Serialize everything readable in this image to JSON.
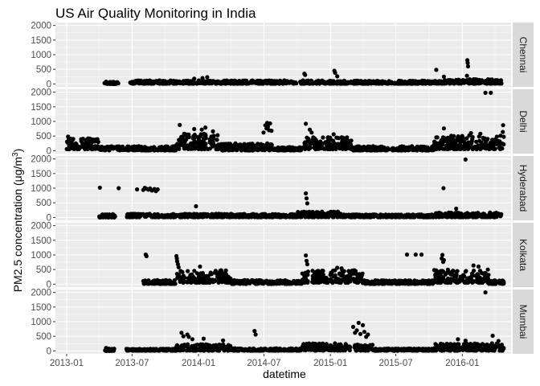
{
  "chart_data": {
    "type": "scatter",
    "title": "US Air Quality Monitoring in India",
    "xlabel": "datetime",
    "ylabel": "PM2.5 concentration (μg/m³)",
    "ylabel_parts": {
      "main": "PM2.5 concentration (μg/m",
      "sup": "3",
      "tail": ")"
    },
    "x_ticks": [
      "2013-01",
      "2013-07",
      "2014-01",
      "2014-07",
      "2015-01",
      "2015-07",
      "2016-01"
    ],
    "xlim": [
      "2012-12-01",
      "2016-05-15"
    ],
    "y_ticks": [
      0,
      500,
      1000,
      1500,
      2000
    ],
    "ylim": [
      -100,
      2100
    ],
    "facet_direction": "rows",
    "strip_position": "right",
    "colors": {
      "panel_bg": "#ebebeb",
      "grid_major": "#ffffff",
      "grid_minor": "#f7f7f7",
      "strip_bg": "#d9d9d9",
      "point": "#000000"
    },
    "panels": [
      {
        "name": "Chennai",
        "baseline": [
          {
            "from": "2013-04-15",
            "to": "2013-05-25",
            "low": 0,
            "high": 70
          },
          {
            "from": "2013-06-25",
            "to": "2014-12-15",
            "low": 10,
            "high": 120
          },
          {
            "from": "2014-12-15",
            "to": "2015-11-10",
            "low": 10,
            "high": 110
          },
          {
            "from": "2015-11-10",
            "to": "2016-04-20",
            "low": 10,
            "high": 160
          }
        ],
        "outliers": [
          {
            "x": "2013-04-20",
            "y": 75
          },
          {
            "x": "2013-05-01",
            "y": 60
          },
          {
            "x": "2013-05-20",
            "y": 50
          },
          {
            "x": "2013-07-01",
            "y": 70
          },
          {
            "x": "2013-07-25",
            "y": 110
          },
          {
            "x": "2013-09-15",
            "y": 120
          },
          {
            "x": "2013-12-20",
            "y": 180
          },
          {
            "x": "2014-01-12",
            "y": 200
          },
          {
            "x": "2014-01-25",
            "y": 230
          },
          {
            "x": "2014-10-21",
            "y": 350
          },
          {
            "x": "2014-10-23",
            "y": 310
          },
          {
            "x": "2015-01-12",
            "y": 450
          },
          {
            "x": "2015-01-14",
            "y": 380
          },
          {
            "x": "2015-01-20",
            "y": 260
          },
          {
            "x": "2015-10-21",
            "y": 480
          },
          {
            "x": "2015-11-11",
            "y": 250
          },
          {
            "x": "2016-01-15",
            "y": 810
          },
          {
            "x": "2016-01-16",
            "y": 720
          },
          {
            "x": "2016-01-17",
            "y": 600
          },
          {
            "x": "2016-01-14",
            "y": 280
          },
          {
            "x": "2016-04-10",
            "y": 100
          }
        ]
      },
      {
        "name": "Delhi",
        "baseline": [
          {
            "from": "2013-01-01",
            "to": "2013-03-31",
            "low": 50,
            "high": 420
          },
          {
            "from": "2013-03-31",
            "to": "2013-10-31",
            "low": 10,
            "high": 150
          },
          {
            "from": "2013-10-31",
            "to": "2014-02-28",
            "low": 50,
            "high": 580
          },
          {
            "from": "2014-02-28",
            "to": "2014-07-31",
            "low": 10,
            "high": 250
          },
          {
            "from": "2014-07-31",
            "to": "2014-10-15",
            "low": 10,
            "high": 120
          },
          {
            "from": "2014-10-15",
            "to": "2015-02-28",
            "low": 50,
            "high": 460
          },
          {
            "from": "2015-02-28",
            "to": "2015-10-15",
            "low": 10,
            "high": 150
          },
          {
            "from": "2015-10-15",
            "to": "2016-04-25",
            "low": 50,
            "high": 520
          }
        ],
        "outliers": [
          {
            "x": "2013-01-05",
            "y": 480
          },
          {
            "x": "2013-11-10",
            "y": 880
          },
          {
            "x": "2013-12-20",
            "y": 740
          },
          {
            "x": "2014-01-10",
            "y": 720
          },
          {
            "x": "2014-01-20",
            "y": 790
          },
          {
            "x": "2014-02-10",
            "y": 660
          },
          {
            "x": "2014-06-30",
            "y": 620
          },
          {
            "x": "2014-07-05",
            "y": 870
          },
          {
            "x": "2014-07-08",
            "y": 760
          },
          {
            "x": "2014-07-10",
            "y": 950
          },
          {
            "x": "2014-07-12",
            "y": 820
          },
          {
            "x": "2014-07-15",
            "y": 700
          },
          {
            "x": "2014-07-18",
            "y": 930
          },
          {
            "x": "2014-07-22",
            "y": 680
          },
          {
            "x": "2014-10-25",
            "y": 920
          },
          {
            "x": "2014-11-05",
            "y": 720
          },
          {
            "x": "2014-11-10",
            "y": 620
          },
          {
            "x": "2015-01-10",
            "y": 560
          },
          {
            "x": "2015-11-11",
            "y": 760
          },
          {
            "x": "2016-01-25",
            "y": 600
          },
          {
            "x": "2016-02-20",
            "y": 580
          },
          {
            "x": "2016-03-05",
            "y": 1980
          },
          {
            "x": "2016-03-20",
            "y": 1980
          },
          {
            "x": "2016-04-23",
            "y": 870
          },
          {
            "x": "2016-04-22",
            "y": 640
          }
        ]
      },
      {
        "name": "Hyderabad",
        "baseline": [
          {
            "from": "2013-04-01",
            "to": "2013-05-15",
            "low": 0,
            "high": 110
          },
          {
            "from": "2013-06-15",
            "to": "2014-09-30",
            "low": 10,
            "high": 120
          },
          {
            "from": "2014-09-30",
            "to": "2015-01-31",
            "low": 10,
            "high": 200
          },
          {
            "from": "2015-01-31",
            "to": "2015-10-15",
            "low": 10,
            "high": 100
          },
          {
            "from": "2015-10-15",
            "to": "2016-04-20",
            "low": 10,
            "high": 170
          }
        ],
        "outliers": [
          {
            "x": "2013-04-03",
            "y": 1020
          },
          {
            "x": "2013-04-10",
            "y": 100
          },
          {
            "x": "2013-05-25",
            "y": 1000
          },
          {
            "x": "2013-07-15",
            "y": 960
          },
          {
            "x": "2013-08-01",
            "y": 940
          },
          {
            "x": "2013-08-05",
            "y": 1010
          },
          {
            "x": "2013-08-10",
            "y": 980
          },
          {
            "x": "2013-08-15",
            "y": 950
          },
          {
            "x": "2013-08-20",
            "y": 990
          },
          {
            "x": "2013-08-25",
            "y": 920
          },
          {
            "x": "2013-09-01",
            "y": 970
          },
          {
            "x": "2013-09-05",
            "y": 900
          },
          {
            "x": "2013-09-10",
            "y": 960
          },
          {
            "x": "2013-12-25",
            "y": 380
          },
          {
            "x": "2014-10-25",
            "y": 820
          },
          {
            "x": "2014-10-27",
            "y": 650
          },
          {
            "x": "2014-10-29",
            "y": 480
          },
          {
            "x": "2015-11-10",
            "y": 1000
          },
          {
            "x": "2016-01-10",
            "y": 1980
          },
          {
            "x": "2015-12-15",
            "y": 300
          }
        ]
      },
      {
        "name": "Kolkata",
        "baseline": [
          {
            "from": "2013-08-01",
            "to": "2013-10-31",
            "low": 10,
            "high": 140
          },
          {
            "from": "2013-10-31",
            "to": "2014-03-31",
            "low": 50,
            "high": 480
          },
          {
            "from": "2014-03-31",
            "to": "2014-10-15",
            "low": 10,
            "high": 140
          },
          {
            "from": "2014-10-15",
            "to": "2015-03-31",
            "low": 50,
            "high": 480
          },
          {
            "from": "2015-03-31",
            "to": "2015-10-15",
            "low": 10,
            "high": 130
          },
          {
            "from": "2015-10-15",
            "to": "2016-03-15",
            "low": 50,
            "high": 500
          },
          {
            "from": "2016-03-15",
            "to": "2016-04-25",
            "low": 10,
            "high": 130
          }
        ],
        "outliers": [
          {
            "x": "2013-08-08",
            "y": 1010
          },
          {
            "x": "2013-08-10",
            "y": 960
          },
          {
            "x": "2013-11-01",
            "y": 960
          },
          {
            "x": "2013-11-02",
            "y": 880
          },
          {
            "x": "2013-11-03",
            "y": 780
          },
          {
            "x": "2013-11-05",
            "y": 680
          },
          {
            "x": "2013-11-07",
            "y": 580
          },
          {
            "x": "2014-01-05",
            "y": 600
          },
          {
            "x": "2014-10-25",
            "y": 980
          },
          {
            "x": "2014-10-27",
            "y": 800
          },
          {
            "x": "2014-10-29",
            "y": 680
          },
          {
            "x": "2015-01-20",
            "y": 560
          },
          {
            "x": "2015-02-01",
            "y": 540
          },
          {
            "x": "2015-08-01",
            "y": 1010
          },
          {
            "x": "2015-08-25",
            "y": 1010
          },
          {
            "x": "2015-09-10",
            "y": 1010
          },
          {
            "x": "2015-11-05",
            "y": 880
          },
          {
            "x": "2015-11-07",
            "y": 1000
          },
          {
            "x": "2015-11-09",
            "y": 760
          },
          {
            "x": "2015-11-11",
            "y": 820
          },
          {
            "x": "2016-02-01",
            "y": 640
          },
          {
            "x": "2016-02-15",
            "y": 600
          }
        ]
      },
      {
        "name": "Mumbai",
        "baseline": [
          {
            "from": "2013-04-15",
            "to": "2013-05-15",
            "low": 0,
            "high": 80
          },
          {
            "from": "2013-06-15",
            "to": "2013-10-31",
            "low": 10,
            "high": 70
          },
          {
            "from": "2013-10-31",
            "to": "2014-03-31",
            "low": 10,
            "high": 230
          },
          {
            "from": "2014-03-31",
            "to": "2014-10-15",
            "low": 10,
            "high": 90
          },
          {
            "from": "2014-10-15",
            "to": "2015-04-30",
            "low": 10,
            "high": 260
          },
          {
            "from": "2015-04-30",
            "to": "2015-10-15",
            "low": 10,
            "high": 80
          },
          {
            "from": "2015-10-15",
            "to": "2016-04-25",
            "low": 10,
            "high": 260
          }
        ],
        "outliers": [
          {
            "x": "2013-04-20",
            "y": 100
          },
          {
            "x": "2013-04-25",
            "y": 70
          },
          {
            "x": "2013-11-15",
            "y": 620
          },
          {
            "x": "2013-11-20",
            "y": 500
          },
          {
            "x": "2013-12-01",
            "y": 560
          },
          {
            "x": "2013-12-05",
            "y": 480
          },
          {
            "x": "2013-12-15",
            "y": 400
          },
          {
            "x": "2014-01-15",
            "y": 420
          },
          {
            "x": "2014-03-10",
            "y": 360
          },
          {
            "x": "2014-06-05",
            "y": 680
          },
          {
            "x": "2014-06-08",
            "y": 560
          },
          {
            "x": "2015-03-05",
            "y": 820
          },
          {
            "x": "2015-03-10",
            "y": 620
          },
          {
            "x": "2015-03-15",
            "y": 700
          },
          {
            "x": "2015-03-20",
            "y": 960
          },
          {
            "x": "2015-03-25",
            "y": 580
          },
          {
            "x": "2015-04-01",
            "y": 880
          },
          {
            "x": "2015-04-05",
            "y": 650
          },
          {
            "x": "2015-04-10",
            "y": 480
          },
          {
            "x": "2015-04-15",
            "y": 560
          },
          {
            "x": "2015-12-20",
            "y": 400
          },
          {
            "x": "2016-01-10",
            "y": 350
          },
          {
            "x": "2016-03-05",
            "y": 2000
          },
          {
            "x": "2016-03-25",
            "y": 520
          },
          {
            "x": "2016-04-10",
            "y": 340
          }
        ]
      }
    ]
  }
}
